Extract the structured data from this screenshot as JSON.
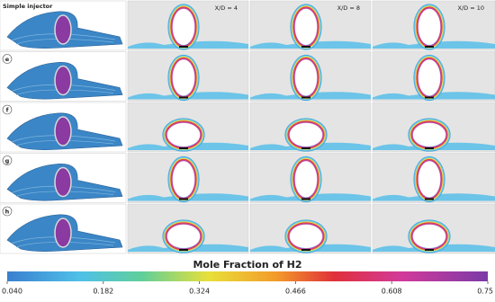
{
  "figure": {
    "rows": [
      "Simple injector",
      "e",
      "f",
      "g",
      "h"
    ],
    "columns": [
      "X/D = 4",
      "X/D = 8",
      "X/D = 10"
    ],
    "colorbar": {
      "title": "Mole Fraction of H2",
      "lim": [
        0.04,
        0.75
      ],
      "ticks": [
        {
          "value": 0.04,
          "label": "0.040"
        },
        0.182,
        0.324,
        0.466,
        0.608,
        0.75
      ]
    }
  }
}
